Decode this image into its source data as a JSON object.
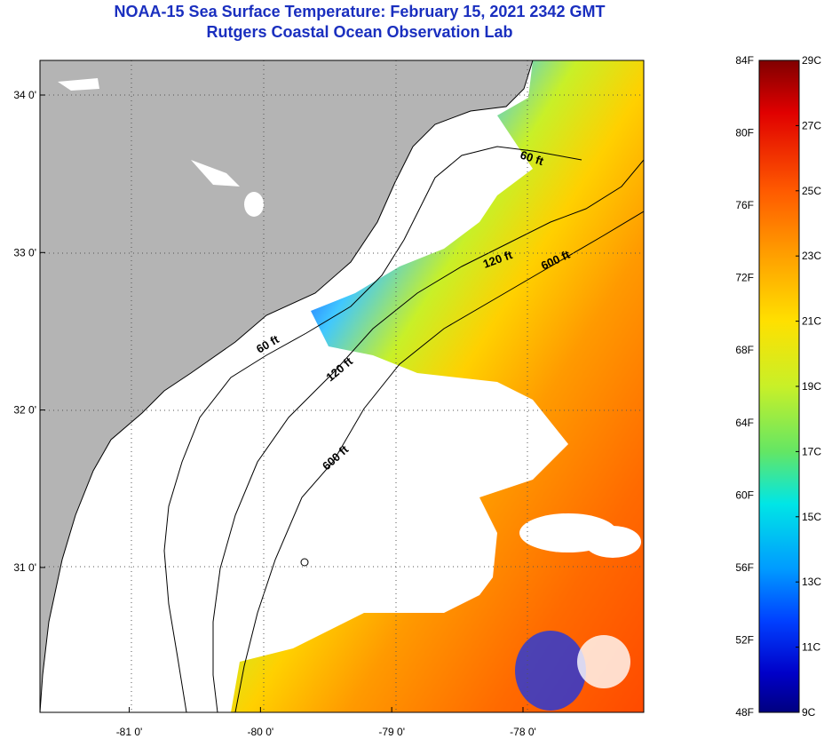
{
  "header": {
    "title": "NOAA-15 Sea Surface Temperature:  February 15, 2021 2342 GMT",
    "subtitle": "Rutgers Coastal Ocean Observation Lab"
  },
  "map": {
    "lon_range": [
      -81.68,
      -77.08
    ],
    "lat_range": [
      30.08,
      34.22
    ],
    "lon_ticks": [
      {
        "value": -81,
        "label": "-81 0'"
      },
      {
        "value": -80,
        "label": "-80 0'"
      },
      {
        "value": -79,
        "label": "-79 0'"
      },
      {
        "value": -78,
        "label": "-78 0'"
      }
    ],
    "lat_ticks": [
      {
        "value": 34,
        "label": "34 0'"
      },
      {
        "value": 33,
        "label": "33 0'"
      },
      {
        "value": 32,
        "label": "32 0'"
      },
      {
        "value": 31,
        "label": "31 0'"
      }
    ],
    "contour_labels": [
      {
        "text": "60 ft"
      },
      {
        "text": "120 ft"
      },
      {
        "text": "600 ft"
      },
      {
        "text": "60 ft"
      },
      {
        "text": "120 ft"
      },
      {
        "text": "600 ft"
      }
    ],
    "colors": {
      "land": "#b4b4b4",
      "no_data": "#ffffff",
      "coast": "#000000"
    }
  },
  "colorbar": {
    "fahrenheit_labels": [
      "84F",
      "80F",
      "76F",
      "72F",
      "68F",
      "64F",
      "60F",
      "56F",
      "52F",
      "48F"
    ],
    "celsius_labels": [
      "29C",
      "27C",
      "25C",
      "23C",
      "21C",
      "19C",
      "17C",
      "15C",
      "13C",
      "11C",
      "9C"
    ],
    "gradient_colors": [
      "#800000",
      "#e00000",
      "#ff5a00",
      "#ffa000",
      "#ffe000",
      "#c8f028",
      "#64e664",
      "#00e6e6",
      "#009bff",
      "#0040ff",
      "#0000c8",
      "#000080"
    ]
  }
}
